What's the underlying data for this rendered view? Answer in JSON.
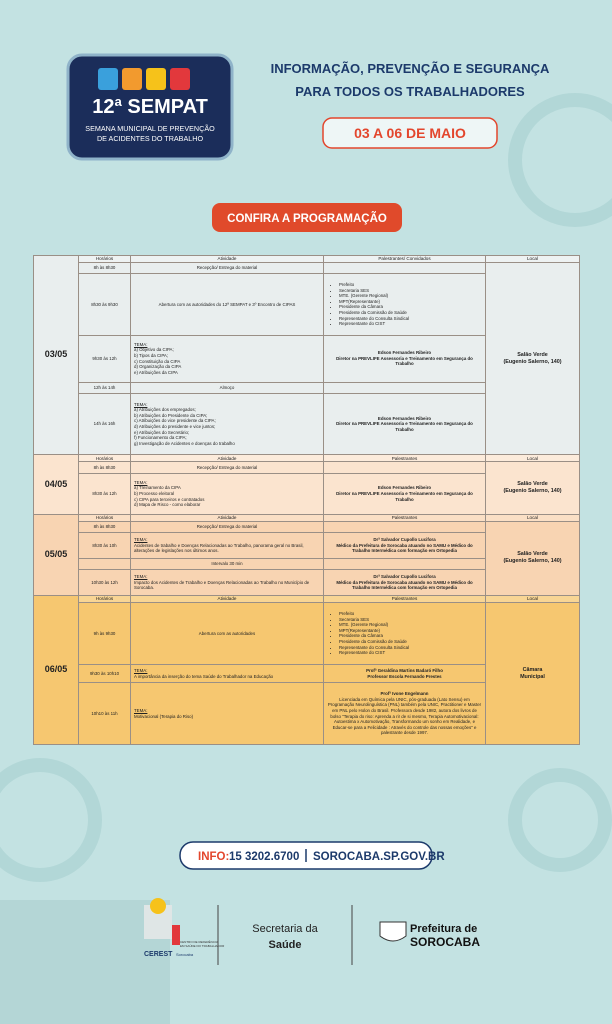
{
  "header": {
    "logo_title": "12ª SEMPAT",
    "logo_subtitle": [
      "SEMANA MUNICIPAL DE PREVENÇÃO",
      "DE ACIDENTES DO TRABALHO"
    ],
    "headline": [
      "INFORMAÇÃO, PREVENÇÃO E SEGURANÇA",
      "PARA TODOS OS TRABALHADORES"
    ],
    "dates": "03 A 06 DE MAIO"
  },
  "button": "CONFIRA A PROGRAMAÇÃO",
  "table": {
    "days": [
      {
        "date": "03/05",
        "color": "#e9eeee",
        "headers": [
          "Horários",
          "Atividade",
          "Palestrantes/ Convidados",
          "Local"
        ],
        "local": [
          "Salão Verde",
          "(Eugenio Salerno, 140)"
        ],
        "rows": [
          {
            "time": "8h às 8h30",
            "activity": [
              "Recepção/ Entrega do material"
            ]
          },
          {
            "time": "8h30 às 9h30",
            "activity": [
              "Abertura com as autoridades do 12ª SEMPAT e 3º Encontro de CIPAS"
            ],
            "guests": [
              "Prefeito",
              "Secretaria SES",
              "MTE. (Gerente Regional)",
              "MPT(Representante)",
              "Presidente da Câmara",
              "Presidente da Comissão de Saúde",
              "Representante do Consulta Sindical",
              "Representante do CIST"
            ]
          },
          {
            "time": "9h30 às 12h",
            "heading": "TEMA:",
            "activity": [
              "a) Objetivo da CIPA;",
              "b) Tipos da CIPA;",
              "c) Constituição da CIPA",
              "d) Organização da CIPA",
              "e) Atribuições da CIPA"
            ],
            "speakers": [
              "Edson Fernandes Ribeiro",
              "Diretor na PREVLIFE Assessoria e Treinamento em Segurança do Trabalho"
            ]
          },
          {
            "time": "12h às 14h",
            "activity": [
              "Almoço"
            ]
          },
          {
            "time": "14h às 16h",
            "heading": "TEMA:",
            "activity": [
              "a) Atribuições dos empregados;",
              "b) Atribuições do Presidente da CIPA;",
              "c) Atribuições do vice presidente da CIPA;",
              "d) Atribuições do presidente e vice juntos;",
              "e) Atribuições do Secretário;",
              "f) Funcionamento da CIPA;",
              "g) Investigação de Acidentes e doenças do trabalho"
            ],
            "speakers": [
              "Edson Fernandes Ribeiro",
              "Diretor na PREVLIFE Assessoria e Treinamento em Segurança do Trabalho"
            ]
          }
        ]
      },
      {
        "date": "04/05",
        "color": "#fbe4cf",
        "headers": [
          "Horários",
          "Atividade",
          "Palestrantes",
          "Local"
        ],
        "local": [
          "Salão Verde",
          "(Eugenio Salerno, 140)"
        ],
        "rows": [
          {
            "time": "8h às 8h30",
            "activity": [
              "Recepção/ Entrega do material"
            ]
          },
          {
            "time": "8h30 às 12h",
            "heading": "TEMA:",
            "activity": [
              "a) Treinamento da CIPA",
              "b) Processo eleitoral",
              "c) CIPA para terceiros e contratados",
              "d) Mapa de Risco - como elaborar"
            ],
            "speakers": [
              "Edson Fernandes Ribeiro",
              "Diretor na PREVLIFE Assessoria e Treinamento em Segurança do Trabalho"
            ]
          }
        ]
      },
      {
        "date": "05/05",
        "color": "#f8d4b2",
        "headers": [
          "Horários",
          "Atividade",
          "Palestrantes",
          "Local"
        ],
        "local": [
          "Salão Verde",
          "(Eugenio Salerno, 140)"
        ],
        "rows": [
          {
            "time": "8h às 8h30",
            "activity": [
              "Recepção/ Entrega do material"
            ]
          },
          {
            "time": "8h30 às 10h",
            "heading": "TEMA:",
            "activity": [
              "Acidentes de trabalho e Doenças Relacionadas ao Trabalho, panorama geral no Brasil, alterações de legislações nos últimos anos."
            ],
            "speakers": [
              "Drª Salvador Cupollo Lucifora",
              "Médico da Prefeitura de Sorocaba atuando no SAMU e Médico do Trabalho Intermédica com formação em Ortopedia"
            ]
          },
          {
            "time": "",
            "activity": [
              "Intervalo 30 min"
            ]
          },
          {
            "time": "10h30 às 12h",
            "heading": "TEMA:",
            "activity": [
              "Impacto dos Acidentes de Trabalho e Doenças Relacionadas ao Trabalho no Município de Sorocaba."
            ],
            "speakers": [
              "Drª Salvador Cupollo Lucifora",
              "Médico da Prefeitura de Sorocaba atuando no SAMU e Médico do Trabalho Intermédica com formação em Ortopedia"
            ]
          }
        ]
      },
      {
        "date": "06/05",
        "color": "#f6c770",
        "headers": [
          "Horários",
          "Atividade",
          "Palestrantes",
          "Local"
        ],
        "local": [
          "Câmara",
          "Municipal"
        ],
        "rows": [
          {
            "time": "9h às 9h30",
            "activity": [
              "Abertura com as autoridades"
            ],
            "guests": [
              "Prefeito",
              "Secretaria SES",
              "MTE. (Gerente Regional)",
              "MPT(Representante)",
              "Presidente da Câmara",
              "Presidente da Comissão de Saúde",
              "Representante do Consulta Sindical",
              "Representante do CIST"
            ]
          },
          {
            "time": "9h30 às 10h10",
            "heading": "TEMA:",
            "activity": [
              "A importância da inserção do tema Saúde do Trabalhador na Educação"
            ],
            "speakers": [
              "Profª Geraldina Martins Badaró Filho",
              "Professor Escola Fernando Prestes"
            ]
          },
          {
            "time": "10h10 às 11h",
            "heading": "TEMA:",
            "activity": [
              "Motivacional (Terapia do Riso)"
            ],
            "speakers": [
              "Profª Ivone Engelmann"
            ],
            "bio": "Licenciada em Química pela UNIC, pós-graduada (Lato Sensu) em Programação Neurolinguística (PNL) também pela UNIC, Practitioner e Master em PNL pelo Holon do Brasil. Professora desde 1982, autora dos livros de bolso \"Terapia do riso: Aprenda a rir de si mesmo, Terapia Automotivacional: Autoestima x Automotivação, Transformando um sonho em Realidade, e Educar-se para a Felicidade : Através do controle das nossas emoções\" e palestrante desde 1997."
          }
        ]
      }
    ]
  },
  "footer": {
    "info_label": "INFO:",
    "phone": "15 3202.6700",
    "site": "SOROCABA.SP.GOV.BR",
    "cerest_caption": [
      "CENTRO DE REFERÊNCIA",
      "EM SAÚDE DO TRABALHADOR"
    ],
    "cerest_name": "CEREST",
    "cerest_city": "Sorocaba",
    "secretaria": [
      "Secretaria da",
      "Saúde"
    ],
    "prefeitura": [
      "Prefeitura de",
      "SOROCABA"
    ]
  }
}
